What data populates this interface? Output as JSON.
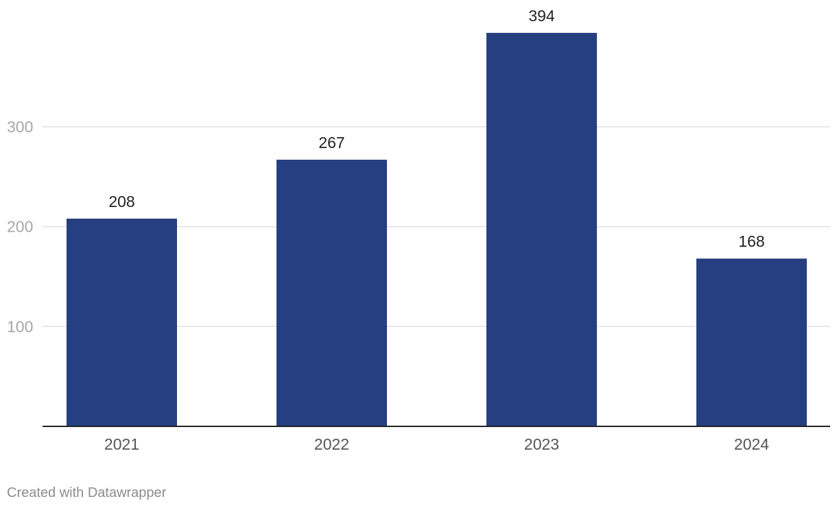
{
  "chart_data": {
    "type": "bar",
    "categories": [
      "2021",
      "2022",
      "2023",
      "2024"
    ],
    "values": [
      208,
      267,
      394,
      168
    ],
    "title": "",
    "xlabel": "",
    "ylabel": "",
    "ylim": [
      0,
      400
    ],
    "yticks": [
      100,
      200,
      300
    ],
    "grid": true,
    "show_data_labels": true,
    "bar_color": "#253f80",
    "legend": "none"
  },
  "footer": {
    "credit": "Created with Datawrapper"
  }
}
